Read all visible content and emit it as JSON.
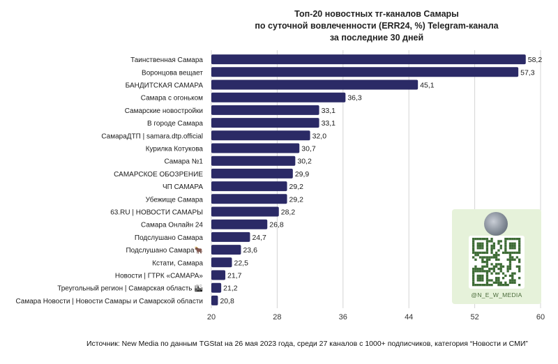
{
  "chart_data": {
    "type": "bar",
    "orientation": "horizontal",
    "title": [
      "Топ-20 новостных тг-каналов Самары",
      "по суточной вовлеченности (ERR24, %) Telegram-канала",
      "за последние 30 дней"
    ],
    "categories": [
      "Таинственная Самара",
      "Воронцова вещает",
      "БАНДИТСКАЯ САМАРА",
      "Самара с огоньком",
      "Самарские новостройки",
      "В городе Самара",
      "СамараДТП | samara.dtp.official",
      "Курилка Котукова",
      "Самара №1",
      "САМАРСКОЕ ОБОЗРЕНИЕ",
      "ЧП САМАРА",
      "Убежище Самара",
      "63.RU | НОВОСТИ САМАРЫ",
      "Самара Онлайн 24",
      "Подслушано Самара",
      "Подслушано Самара🐂",
      "Кстати, Самара",
      "Новости | ГТРК «САМАРА»",
      "Треугольный регион | Самарская область 🏙",
      "Самара Новости | Новости Самары и Самарской области"
    ],
    "values": [
      58.2,
      57.3,
      45.1,
      36.3,
      33.1,
      33.1,
      32.0,
      30.7,
      30.2,
      29.9,
      29.2,
      29.2,
      28.2,
      26.8,
      24.7,
      23.6,
      22.5,
      21.7,
      21.2,
      20.8
    ],
    "value_labels": [
      "58,2",
      "57,3",
      "45,1",
      "36,3",
      "33,1",
      "33,1",
      "32,0",
      "30,7",
      "30,2",
      "29,9",
      "29,2",
      "29,2",
      "28,2",
      "26,8",
      "24,7",
      "23,6",
      "22,5",
      "21,7",
      "21,2",
      "20,8"
    ],
    "xlim": [
      20,
      60
    ],
    "xticks": [
      20,
      28,
      36,
      44,
      52,
      60
    ],
    "xlabel": "",
    "ylabel": "",
    "grid": true,
    "legend": "none",
    "bar_color": "#2b2a66"
  },
  "source_note": "Источник: New Media по данным TGStat на 26 мая 2023 года, среди 27 каналов с 1000+ подписчиков, категория “Новости и СМИ”",
  "qr_card": {
    "handle": "@N_E_W_MEDIA",
    "logo_icon": "new-media-logo-icon",
    "qr_icon": "qr-code-icon"
  }
}
